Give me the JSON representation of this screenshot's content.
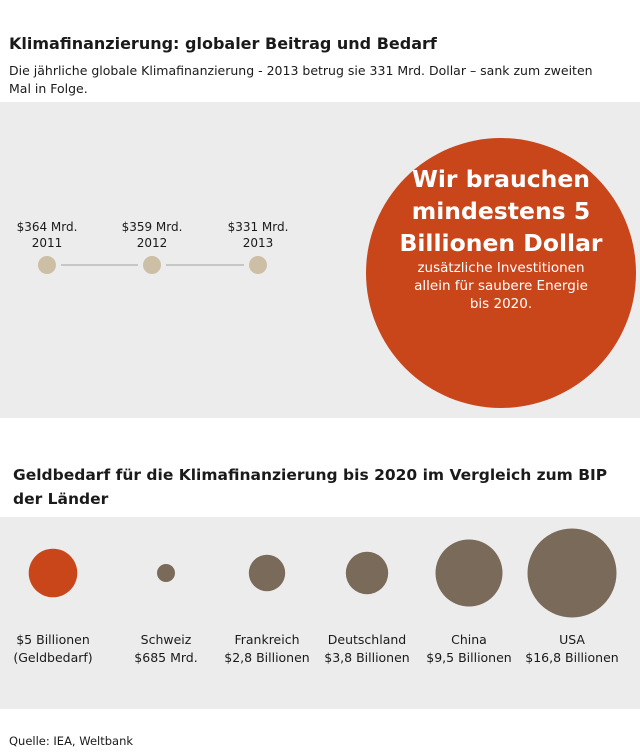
{
  "title": "Klimafinanzierung: globaler Beitrag und Bedarf",
  "subtitle": "Die jährliche globale Klimafinanzierung - 2013 betrug sie 331 Mrd. Dollar – sank zum zweiten Mal in Folge.",
  "callout": {
    "headline": "Wir brauchen\nmindestens 5\nBillionen Dollar",
    "text": "zusätzliche Investitionen\nallein für saubere Energie\nbis 2020."
  },
  "section2_title": "Geldbedarf für die Klimafinanzierung bis 2020 im Vergleich zum BIP der Länder",
  "source": "Quelle: IEA, Weltbank",
  "colors": {
    "accent": "#c9461b",
    "country": "#7a6a5a",
    "timeline_dot": "#cdbfa6",
    "panel": "#ececec"
  },
  "chart_data": [
    {
      "type": "scatter",
      "title": "",
      "points": [
        {
          "year": "2011",
          "value": 364,
          "label": "$364 Mrd."
        },
        {
          "year": "2012",
          "value": 359,
          "label": "$359 Mrd."
        },
        {
          "year": "2013",
          "value": 331,
          "label": "$331 Mrd."
        }
      ],
      "unit": "Mrd. Dollar"
    },
    {
      "type": "bubble",
      "title": "Geldbedarf für die Klimafinanzierung bis 2020 im Vergleich zum BIP der Länder",
      "categories": [
        "$5 Billionen\n(Geldbedarf)",
        "Schweiz",
        "Frankreich",
        "Deutschland",
        "China",
        "USA"
      ],
      "values": [
        5,
        0.685,
        2.8,
        3.8,
        9.5,
        16.8
      ],
      "value_labels": [
        "",
        "$685 Mrd.",
        "$2,8 Billionen",
        "$3,8 Billionen",
        "$9,5 Billionen",
        "$16,8 Billionen"
      ],
      "unit": "Billionen Dollar"
    }
  ]
}
